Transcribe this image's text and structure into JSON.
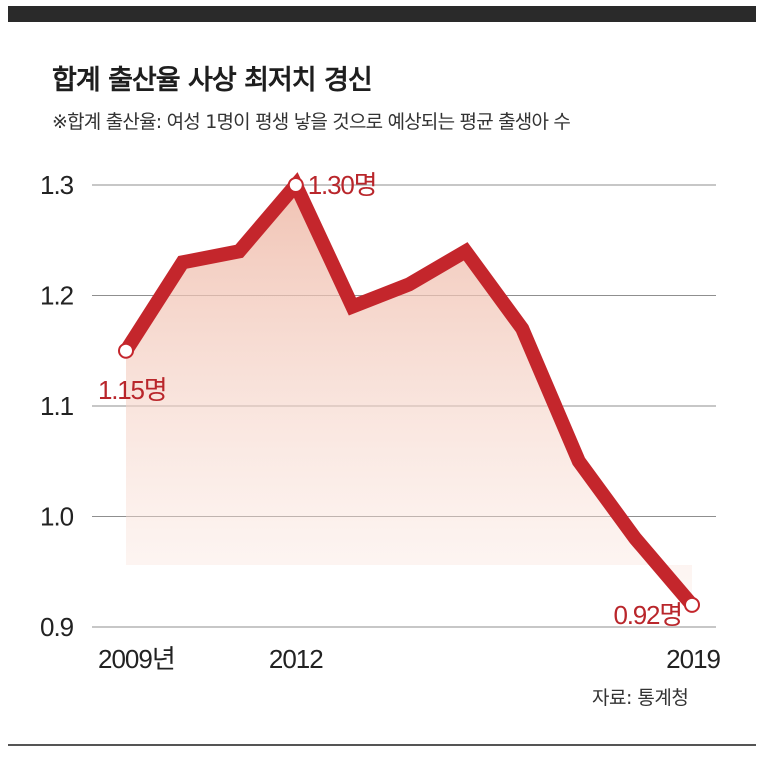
{
  "title": "합계 출산율 사상 최저치 경신",
  "subtitle": "※합계 출산율: 여성 1명이 평생 낳을 것으로 예상되는 평균 출생아 수",
  "source": "자료: 통계청",
  "colors": {
    "line": "#c4262c",
    "area": "#f2cfc3",
    "grid": "#8f8f8f",
    "label": "#b9262b"
  },
  "chart_data": {
    "type": "line",
    "title": "합계 출산율 사상 최저치 경신",
    "x": [
      2009,
      2010,
      2011,
      2012,
      2013,
      2014,
      2015,
      2016,
      2017,
      2018,
      2019
    ],
    "series": [
      {
        "values": [
          1.15,
          1.23,
          1.24,
          1.3,
          1.19,
          1.21,
          1.24,
          1.17,
          1.05,
          0.98,
          0.92
        ]
      }
    ],
    "ylim": [
      0.9,
      1.3
    ],
    "y_ticks": [
      "1.3",
      "1.2",
      "1.1",
      "1.0",
      "0.9"
    ],
    "x_tick_labels": [
      "2009년",
      "2012",
      "2019"
    ],
    "data_labels": [
      "1.15명",
      "1.30명",
      "0.92명"
    ],
    "grid": true,
    "area_fill": true
  }
}
